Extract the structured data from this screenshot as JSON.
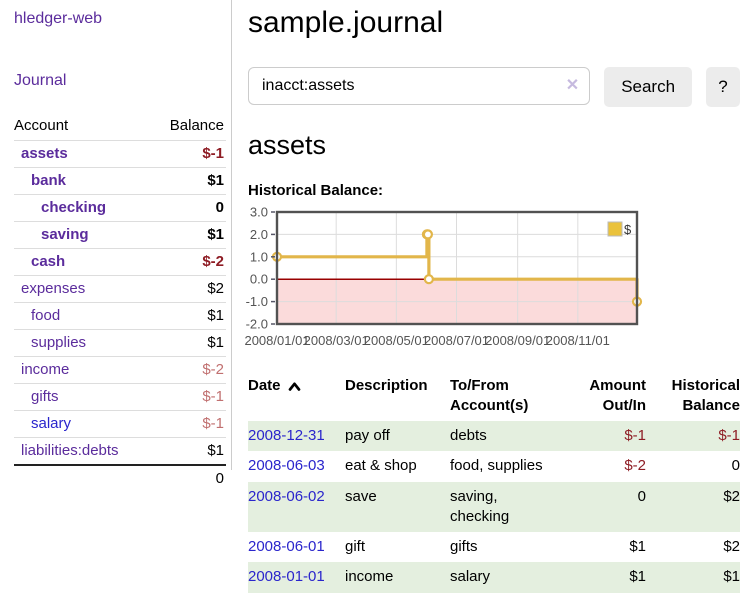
{
  "app": {
    "brand": "hledger-web"
  },
  "sidebar": {
    "journal_label": "Journal",
    "accounts": {
      "header_account": "Account",
      "header_balance": "Balance",
      "rows": [
        {
          "name": "assets",
          "balance": "$-1"
        },
        {
          "name": "bank",
          "balance": "$1"
        },
        {
          "name": "checking",
          "balance": "0"
        },
        {
          "name": "saving",
          "balance": "$1"
        },
        {
          "name": "cash",
          "balance": "$-2"
        },
        {
          "name": "expenses",
          "balance": "$2"
        },
        {
          "name": "food",
          "balance": "$1"
        },
        {
          "name": "supplies",
          "balance": "$1"
        },
        {
          "name": "income",
          "balance": "$-2"
        },
        {
          "name": "gifts",
          "balance": "$-1"
        },
        {
          "name": "salary",
          "balance": "$-1"
        },
        {
          "name": "liabilities:debts",
          "balance": "$1"
        }
      ],
      "total": "0"
    }
  },
  "header": {
    "title": "sample.journal"
  },
  "search": {
    "value": "inacct:assets",
    "search_button": "Search",
    "help_button": "?"
  },
  "icons": {
    "clear_search": "✕"
  },
  "account_view": {
    "title": "assets",
    "chart_heading": "Historical Balance:"
  },
  "chart_data": {
    "type": "line",
    "title": "Historical Balance:",
    "step": true,
    "series": [
      {
        "name": "$",
        "color": "#e2b64a",
        "points": [
          [
            "2008-01-01",
            1
          ],
          [
            "2008-06-01",
            2
          ],
          [
            "2008-06-02",
            2
          ],
          [
            "2008-06-03",
            0
          ],
          [
            "2008-12-31",
            -1
          ]
        ]
      }
    ],
    "xlim": [
      "2008-01-01",
      "2008-12-31"
    ],
    "ylim": [
      -2,
      3
    ],
    "x_ticks": [
      "2008/01/01",
      "2008/03/01",
      "2008/05/01",
      "2008/07/01",
      "2008/09/01",
      "2008/11/01"
    ],
    "y_ticks": [
      3.0,
      2.0,
      1.0,
      0.0,
      -1.0,
      -2.0
    ],
    "grid": true,
    "legend_position": "top-right",
    "negative_region_color": "#fbdbdb",
    "zero_line_color": "#990000"
  },
  "register": {
    "headers": {
      "date": "Date",
      "description": "Description",
      "accounts": "To/From Account(s)",
      "amount": "Amount Out/In",
      "balance": "Historical Balance"
    },
    "rows": [
      {
        "date": "2008-12-31",
        "description": "pay off",
        "accounts": "debts",
        "amount": "$-1",
        "balance": "$-1"
      },
      {
        "date": "2008-06-03",
        "description": "eat & shop",
        "accounts": "food, supplies",
        "amount": "$-2",
        "balance": "0"
      },
      {
        "date": "2008-06-02",
        "description": "save",
        "accounts": "saving, checking",
        "amount": "0",
        "balance": "$2"
      },
      {
        "date": "2008-06-01",
        "description": "gift",
        "accounts": "gifts",
        "amount": "$1",
        "balance": "$2"
      },
      {
        "date": "2008-01-01",
        "description": "income",
        "accounts": "salary",
        "amount": "$1",
        "balance": "$1"
      }
    ]
  }
}
